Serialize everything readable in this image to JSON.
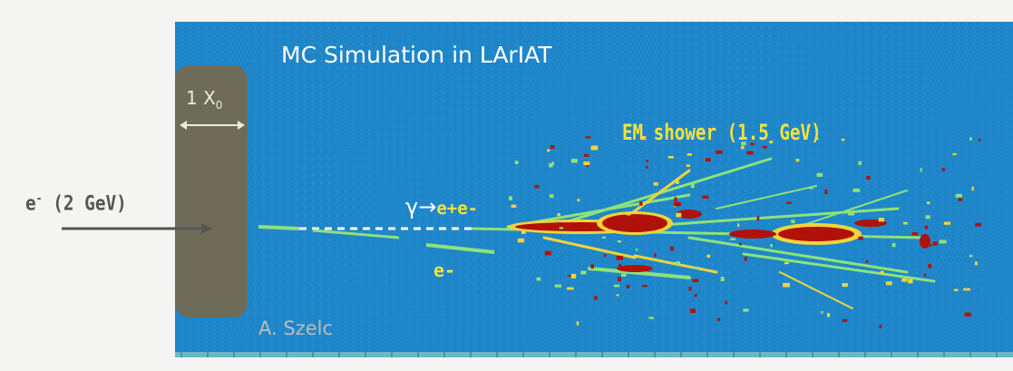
{
  "figure": {
    "title": "MC Simulation in LArIAT",
    "shower_label": "EM shower (1.5 GeV)",
    "gamma_label": "γ→",
    "gamma_products": "e+e-",
    "electron_label": "e-",
    "beam_particle": "e",
    "beam_charge": "-",
    "beam_energy": "(2 GeV)",
    "radiation_length_number": "1 X",
    "radiation_length_subscript": "0",
    "credit": "A. Szelc"
  },
  "colors": {
    "background_blue": "#1f86c9",
    "absorber": "#6e6b58",
    "track_green": "#8ee27a",
    "track_yellow": "#f2d43a",
    "core_red": "#b0120a"
  },
  "icons": {
    "beam_arrow": "right-arrow-icon",
    "width_arrow": "double-arrow-icon"
  }
}
